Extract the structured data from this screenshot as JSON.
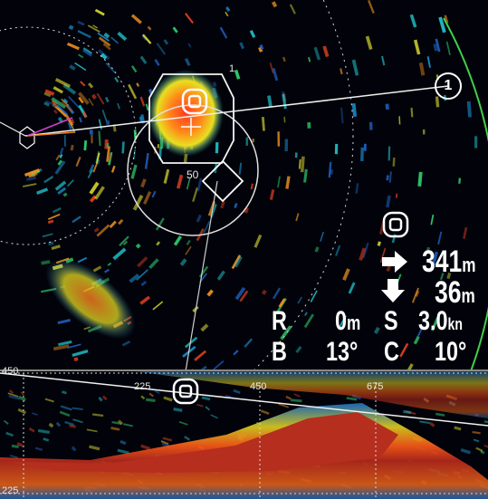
{
  "sonar": {
    "target_marker_label": "1",
    "range_ring_label": "50",
    "scale_top_left": "450",
    "scale_bottom_left": "225",
    "bottom_scale": [
      "225",
      "450",
      "675"
    ]
  },
  "readout": {
    "distance_value": "341",
    "distance_unit": "m",
    "depth_value": "36",
    "depth_unit": "m",
    "r_label": "R",
    "r_value": "0",
    "r_unit": "m",
    "s_label": "S",
    "s_value": "3.0",
    "s_unit": "kn",
    "b_label": "B",
    "b_value": "13°",
    "c_label": "C",
    "c_value": "10°"
  },
  "colors": {
    "ring": "#d8d8d8",
    "heading_line": "#f0f0f0",
    "range_edge": "#3fd04a",
    "echo_red": "#c43020",
    "background": "#02030a"
  }
}
